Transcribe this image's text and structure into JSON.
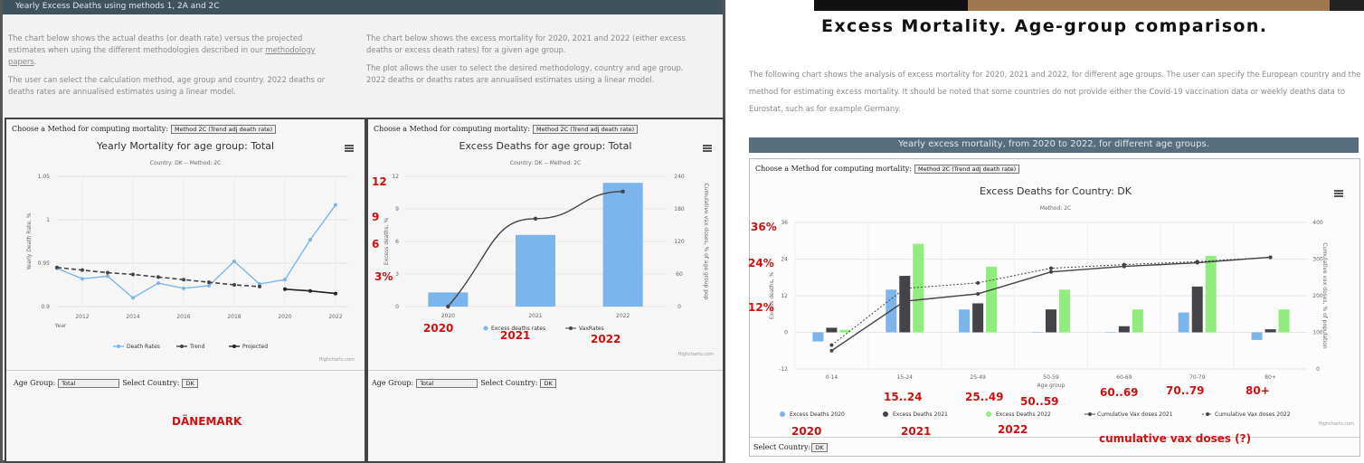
{
  "left": {
    "header": "Yearly Excess Deaths using methods 1, 2A and 2C",
    "intro_left_p1_a": "The chart below shows the actual deaths (or death rate) versus the projected estimates when using the different methodologies described in our ",
    "intro_left_link": "methodology papers",
    "intro_left_p1_b": ".",
    "intro_left_p2": "The user can select the calculation method, age group and country. 2022 deaths or deaths rates are annualised estimates using a linear model.",
    "intro_right_p1": "The chart below shows the excess mortality for 2020, 2021 and 2022 (either excess deaths or excess death rates) for a given age group.",
    "intro_right_p2": "The plot allows the user to select the desired methodology, country and age group. 2022 deaths or deaths rates are annualised estimates using a linear model.",
    "method_label": "Choose a Method for computing mortality:",
    "method_value": "Method 2C (Trend adj death rate)",
    "age_group_label": "Age Group:",
    "age_group_value": "Total",
    "country_label": "Select Country:",
    "country_value": "DK",
    "credit": "Highcharts.com"
  },
  "right": {
    "title": "Excess Mortality. Age-group comparison.",
    "intro": "The following chart shows the analysis of excess mortality for 2020, 2021 and 2022, for different age groups. The user can specify the European country and the method for estimating excess mortality. It should be noted that some countries do not provide either the Covid-19 vaccination data or weekly deaths data to Eurostat, such as for example Germany.",
    "section_bar": "Yearly excess mortality, from 2020 to 2022, for different age groups.",
    "method_label": "Choose a Method for computing mortality:",
    "method_value": "Method 2C (Trend adj death rate)",
    "country_label": "Select Country:",
    "country_value": "DK",
    "credit": "Highcharts.com"
  },
  "annotations": {
    "denmark": "DÄNEMARK",
    "y12": "12",
    "y9": "9",
    "y6": "6",
    "y3": "3%",
    "yr2020": "2020",
    "yr2021": "2021",
    "yr2022": "2022",
    "p36": "36%",
    "p24": "24%",
    "p12": "12%",
    "a1524": "15..24",
    "a2549": "25..49",
    "a5059": "50..59",
    "a6069": "60..69",
    "a7079": "70..79",
    "a80": "80+",
    "l2020": "2020",
    "l2021": "2021",
    "l2022": "2022",
    "vax": "cumulative vax doses (?)"
  },
  "colors": {
    "blue": "#7cb5ec",
    "dark": "#434348",
    "green": "#90ed7d",
    "red": "#cc1111",
    "header": "#3f5260"
  },
  "chart_data": [
    {
      "type": "line",
      "title": "Yearly Mortality for age group: Total",
      "subtitle": "Country: DK -- Method: 2C",
      "xlabel": "Year",
      "ylabel": "Yearly Death Rate, %",
      "ylim": [
        0.9,
        1.05
      ],
      "yticks": [
        "1.05",
        "1",
        "0.95",
        "0.9"
      ],
      "xticks": [
        "2012",
        "2014",
        "2016",
        "2018",
        "2020",
        "2022"
      ],
      "series": [
        {
          "name": "Death Rates",
          "color": "#7cb5ec",
          "x": [
            2011,
            2012,
            2013,
            2014,
            2015,
            2016,
            2017,
            2018,
            2019,
            2020,
            2021,
            2022
          ],
          "values": [
            0.944,
            0.932,
            0.935,
            0.91,
            0.927,
            0.921,
            0.924,
            0.952,
            0.926,
            0.931,
            0.977,
            1.017
          ]
        },
        {
          "name": "Trend",
          "color": "#434348",
          "x": [
            2011,
            2012,
            2013,
            2014,
            2015,
            2016,
            2017,
            2018,
            2019
          ],
          "values": [
            0.945,
            0.942,
            0.939,
            0.937,
            0.934,
            0.931,
            0.928,
            0.925,
            0.923
          ]
        },
        {
          "name": "Projected",
          "color": "#222222",
          "x": [
            2020,
            2021,
            2022
          ],
          "values": [
            0.92,
            0.918,
            0.915
          ]
        }
      ],
      "legend": "bottom",
      "grid": true
    },
    {
      "type": "bar",
      "title": "Excess Deaths for age group: Total",
      "subtitle": "Country: DK -- Method: 2C",
      "ylabel": "Excess deaths, %",
      "y2label": "Cumulative vax doses, % of age group pop",
      "categories": [
        "2020",
        "2021",
        "2022"
      ],
      "ylim": [
        0,
        12
      ],
      "yticks": [
        "12",
        "9",
        "6",
        "3",
        "0"
      ],
      "y2ticks": [
        "240",
        "180",
        "120",
        "60",
        "0"
      ],
      "series": [
        {
          "name": "Excess deaths rates",
          "color": "#7cb5ec",
          "values": [
            1.3,
            6.6,
            11.4
          ]
        },
        {
          "name": "VaxRates",
          "color": "#434348",
          "axis": "right",
          "values": [
            0,
            162,
            212
          ]
        }
      ],
      "legend": "bottom"
    },
    {
      "type": "bar",
      "title": "Excess Deaths for Country: DK",
      "subtitle": "Method: 2C",
      "xlabel": "Age group",
      "ylabel": "Excess deaths, %",
      "y2label": "Cumulative vax doses, % of population",
      "categories": [
        "0-14",
        "15-24",
        "25-49",
        "50-59",
        "60-69",
        "70-79",
        "80+"
      ],
      "ylim": [
        -12,
        36
      ],
      "yticks": [
        "36",
        "24",
        "12",
        "0",
        "-12"
      ],
      "y2ticks": [
        "400",
        "300",
        "200",
        "100",
        "0"
      ],
      "series": [
        {
          "name": "Excess Deaths 2020",
          "color": "#7cb5ec",
          "values": [
            -3,
            14,
            7.5,
            0,
            0,
            6.5,
            -2.5
          ]
        },
        {
          "name": "Excess Deaths 2021",
          "color": "#434348",
          "values": [
            1.5,
            18.5,
            9.5,
            7.5,
            2,
            15,
            1
          ]
        },
        {
          "name": "Excess Deaths 2022",
          "color": "#90ed7d",
          "values": [
            0.8,
            29,
            21.5,
            14,
            7.5,
            25,
            7.5
          ]
        },
        {
          "name": "Cumulative Vax doses 2021",
          "color": "#434348",
          "axis": "right",
          "values": [
            50,
            185,
            205,
            265,
            280,
            290,
            305
          ]
        },
        {
          "name": "Cumulative Vax doses 2022",
          "color": "#434348",
          "axis": "right",
          "dashed": true,
          "values": [
            65,
            220,
            235,
            275,
            285,
            293,
            305
          ]
        }
      ],
      "legend": "bottom"
    }
  ]
}
